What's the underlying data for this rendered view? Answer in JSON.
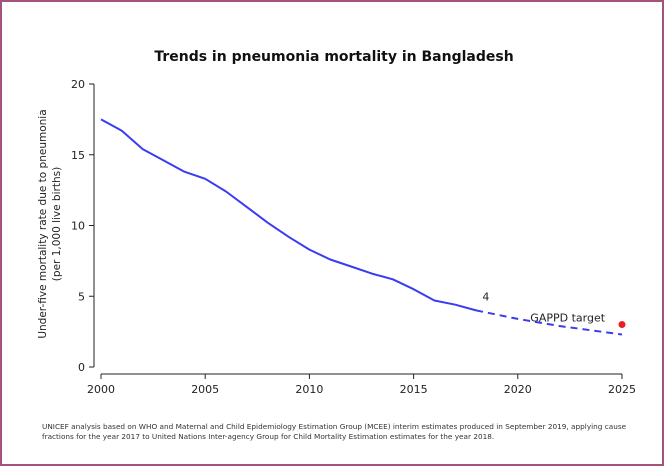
{
  "chart_data": {
    "type": "line",
    "title": "Trends in pneumonia mortality in Bangladesh",
    "xlabel": "",
    "ylabel_lines": [
      "Under-five mortality rate due to pneumonia",
      "(per 1,000 live births)"
    ],
    "xlim": [
      2000,
      2025
    ],
    "ylim": [
      0,
      20
    ],
    "x_ticks": [
      2000,
      2005,
      2010,
      2015,
      2020,
      2025
    ],
    "y_ticks": [
      0,
      5,
      10,
      15,
      20
    ],
    "grid": false,
    "series": [
      {
        "style": "solid",
        "color": "#3a3cf2",
        "x": [
          2000,
          2001,
          2002,
          2003,
          2004,
          2005,
          2006,
          2007,
          2008,
          2009,
          2010,
          2011,
          2012,
          2013,
          2014,
          2015,
          2016,
          2017,
          2018
        ],
        "y": [
          17.5,
          16.7,
          15.4,
          14.6,
          13.8,
          13.3,
          12.4,
          11.3,
          10.2,
          9.2,
          8.3,
          7.6,
          7.1,
          6.6,
          6.2,
          5.5,
          4.7,
          4.4,
          4.0
        ]
      },
      {
        "style": "dashed",
        "color": "#3a3cf2",
        "x": [
          2018,
          2020,
          2022,
          2025
        ],
        "y": [
          4.0,
          3.4,
          2.9,
          2.3
        ]
      }
    ],
    "annotations": [
      {
        "text": "4",
        "x": 2018.3,
        "y": 4.7,
        "color": "#222222"
      },
      {
        "text": "GAPPD target",
        "x": 2020.6,
        "y": 3.2,
        "color": "#ee1c25"
      }
    ],
    "target_point": {
      "x": 2025,
      "y": 3,
      "color": "#ee1c25"
    },
    "footnote": "UNICEF analysis based on WHO and Maternal and Child Epidemiology Estimation Group (MCEE) interim estimates produced in September 2019, applying cause fractions for the year 2017 to United Nations Inter-agency Group for Child Mortality Estimation estimates for the year 2018."
  }
}
